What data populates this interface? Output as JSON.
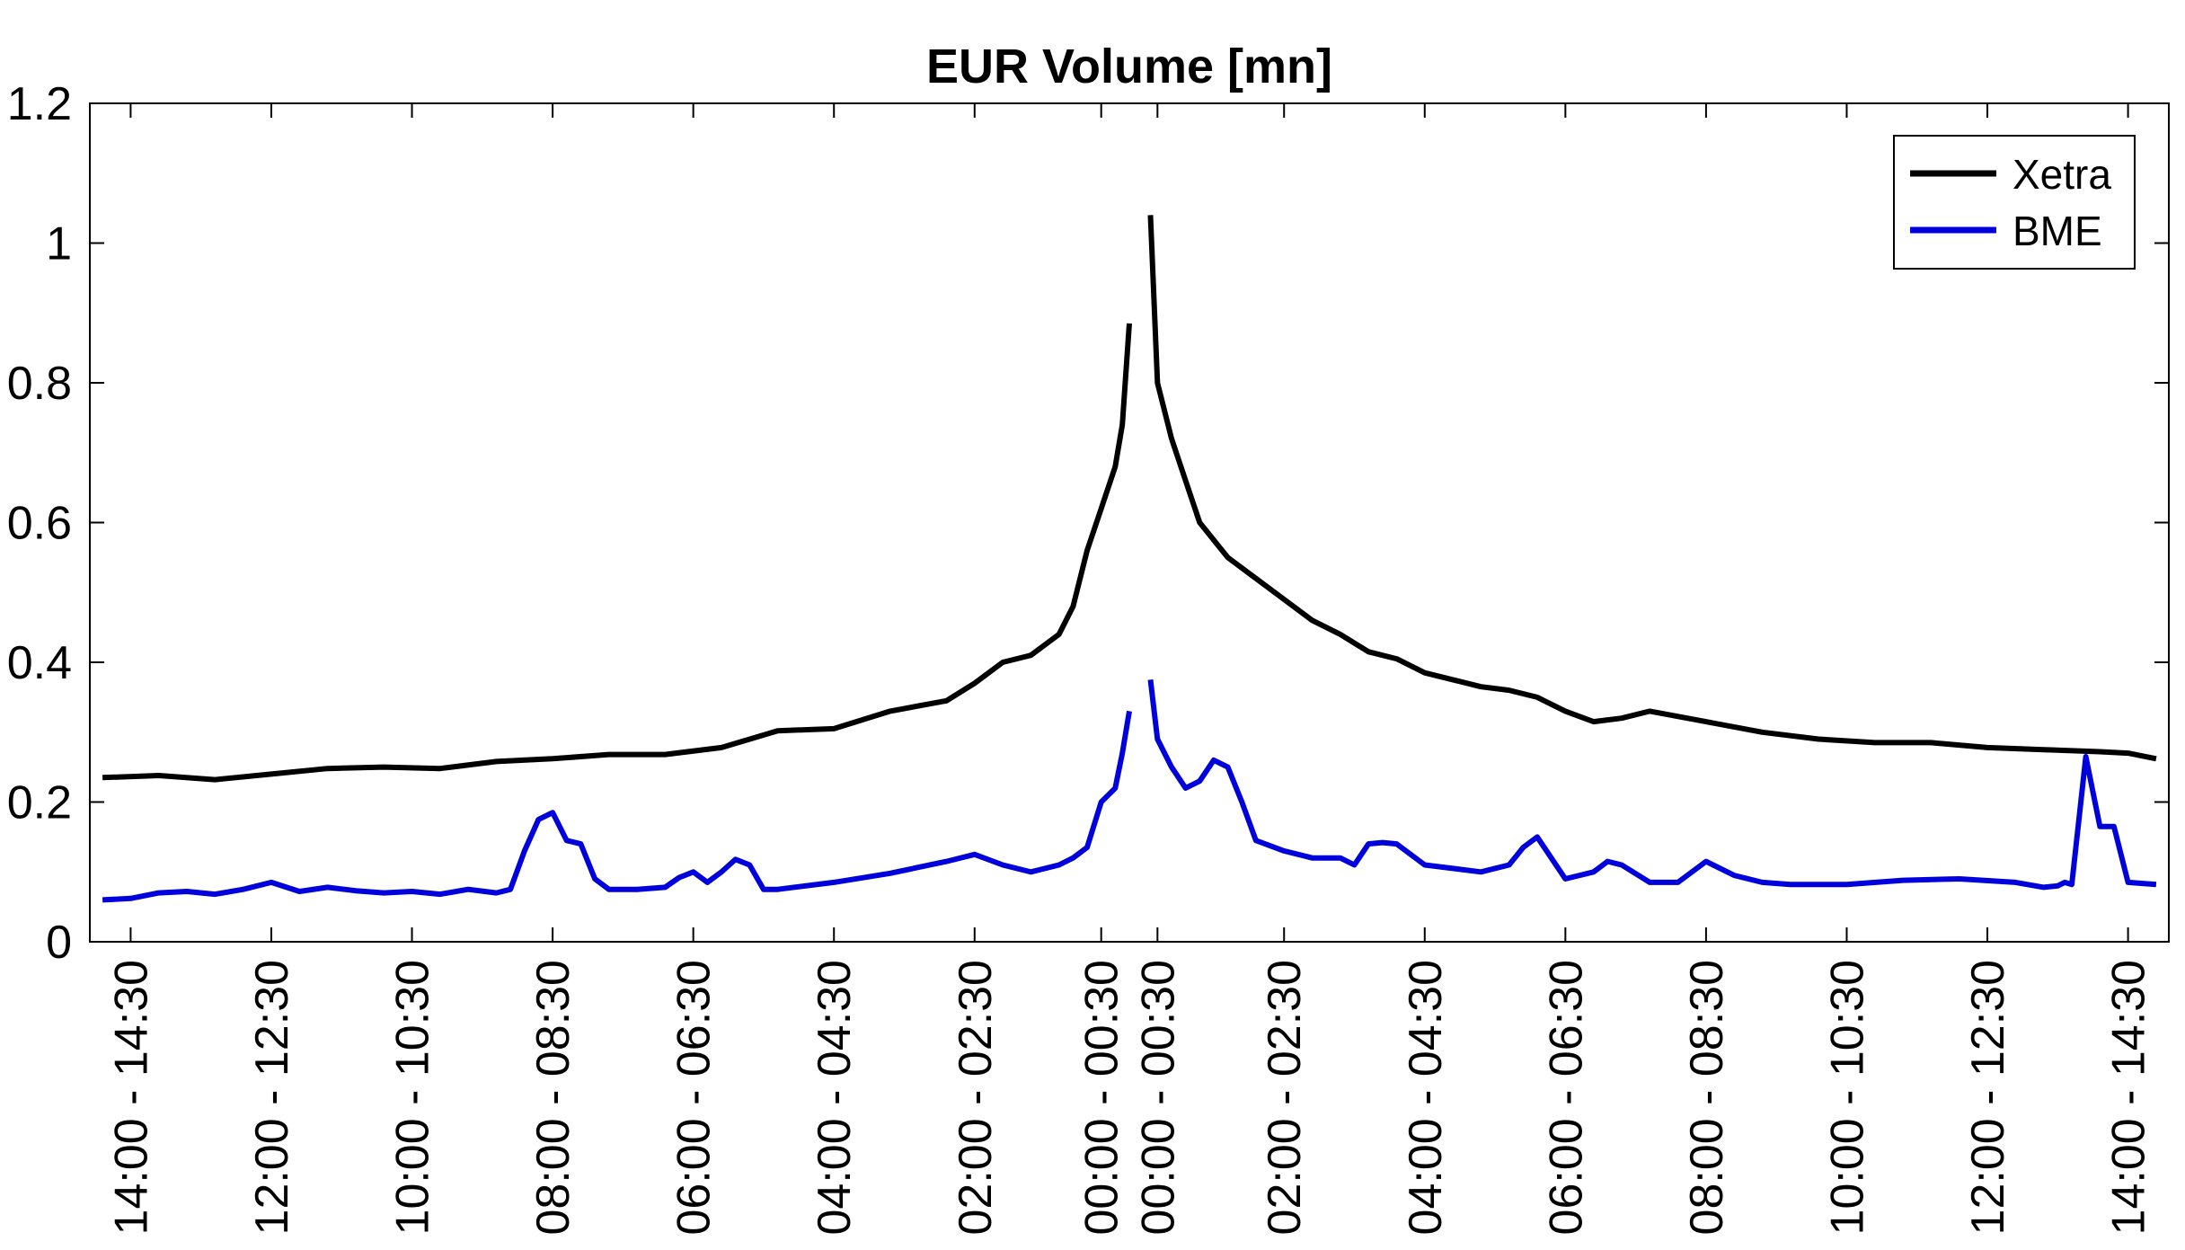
{
  "chart_data": {
    "type": "line",
    "title": "EUR Volume [mn]",
    "xlabel": "",
    "ylabel": "",
    "ylim": [
      0,
      1.2
    ],
    "yticks": [
      0,
      0.2,
      0.4,
      0.6,
      0.8,
      1,
      1.2
    ],
    "ytick_labels": [
      "0",
      "0.2",
      "0.4",
      "0.6",
      "0.8",
      "1",
      "1.2"
    ],
    "grid": false,
    "legend_position": "top-right",
    "xticks": [
      {
        "index": 2,
        "label": "14:00 - 14:30"
      },
      {
        "index": 12,
        "label": "12:00 - 12:30"
      },
      {
        "index": 22,
        "label": "10:00 - 10:30"
      },
      {
        "index": 32,
        "label": "08:00 - 08:30"
      },
      {
        "index": 42,
        "label": "06:00 - 06:30"
      },
      {
        "index": 52,
        "label": "04:00 - 04:30"
      },
      {
        "index": 62,
        "label": "02:00 - 02:30"
      },
      {
        "index": 71,
        "label": "00:00 - 00:30"
      },
      {
        "index": 75,
        "label": "00:00 - 00:30"
      },
      {
        "index": 84,
        "label": "02:00 - 02:30"
      },
      {
        "index": 94,
        "label": "04:00 - 04:30"
      },
      {
        "index": 104,
        "label": "06:00 - 06:30"
      },
      {
        "index": 114,
        "label": "08:00 - 08:30"
      },
      {
        "index": 124,
        "label": "10:00 - 10:30"
      },
      {
        "index": 134,
        "label": "12:00 - 12:30"
      },
      {
        "index": 144,
        "label": "14:00 - 14:30"
      }
    ],
    "x_range": [
      -0.9,
      146.9
    ],
    "series": [
      {
        "name": "Xetra",
        "color": "#000000",
        "segments": [
          {
            "x": [
              0,
              4,
              8,
              12,
              16,
              20,
              24,
              28,
              32,
              36,
              40,
              44,
              48,
              52,
              56,
              60,
              62,
              64,
              66,
              68,
              69,
              70,
              71,
              72,
              72.5,
              73
            ],
            "y": [
              0.235,
              0.238,
              0.232,
              0.24,
              0.248,
              0.25,
              0.248,
              0.258,
              0.262,
              0.268,
              0.268,
              0.278,
              0.302,
              0.305,
              0.33,
              0.345,
              0.37,
              0.4,
              0.41,
              0.44,
              0.48,
              0.56,
              0.62,
              0.68,
              0.74,
              0.885
            ]
          },
          {
            "x": [
              74.5,
              75,
              76,
              77,
              78,
              80,
              82,
              84,
              86,
              88,
              90,
              92,
              94,
              96,
              98,
              100,
              102,
              104,
              106,
              108,
              110,
              114,
              118,
              122,
              126,
              130,
              134,
              138,
              142,
              144,
              146
            ],
            "y": [
              1.04,
              0.8,
              0.72,
              0.66,
              0.6,
              0.55,
              0.52,
              0.49,
              0.46,
              0.44,
              0.415,
              0.405,
              0.385,
              0.375,
              0.365,
              0.36,
              0.35,
              0.33,
              0.315,
              0.32,
              0.33,
              0.315,
              0.3,
              0.29,
              0.285,
              0.285,
              0.278,
              0.275,
              0.272,
              0.27,
              0.262
            ]
          }
        ]
      },
      {
        "name": "BME",
        "color": "#0000dd",
        "segments": [
          {
            "x": [
              0,
              2,
              4,
              6,
              8,
              10,
              12,
              14,
              16,
              18,
              20,
              22,
              24,
              26,
              28,
              29,
              30,
              31,
              32,
              33,
              34,
              35,
              36,
              38,
              40,
              41,
              42,
              43,
              44,
              45,
              46,
              47,
              48,
              52,
              56,
              60,
              62,
              64,
              66,
              68,
              69,
              70,
              71,
              72,
              72.5,
              73
            ],
            "y": [
              0.06,
              0.062,
              0.07,
              0.072,
              0.068,
              0.075,
              0.085,
              0.072,
              0.078,
              0.073,
              0.07,
              0.072,
              0.068,
              0.075,
              0.07,
              0.075,
              0.13,
              0.175,
              0.185,
              0.145,
              0.14,
              0.09,
              0.075,
              0.075,
              0.078,
              0.092,
              0.1,
              0.085,
              0.1,
              0.118,
              0.11,
              0.075,
              0.075,
              0.085,
              0.098,
              0.115,
              0.125,
              0.11,
              0.1,
              0.11,
              0.12,
              0.135,
              0.2,
              0.22,
              0.27,
              0.33
            ]
          },
          {
            "x": [
              74.5,
              75,
              76,
              77,
              78,
              79,
              80,
              81,
              82,
              84,
              86,
              88,
              89,
              90,
              91,
              92,
              94,
              96,
              98,
              100,
              101,
              102,
              104,
              106,
              107,
              108,
              110,
              112,
              114,
              116,
              118,
              120,
              124,
              128,
              132,
              136,
              138,
              139,
              139.5,
              140,
              141,
              142,
              143,
              144,
              146
            ],
            "y": [
              0.375,
              0.29,
              0.25,
              0.22,
              0.23,
              0.26,
              0.25,
              0.2,
              0.145,
              0.13,
              0.12,
              0.12,
              0.11,
              0.14,
              0.142,
              0.14,
              0.11,
              0.105,
              0.1,
              0.11,
              0.135,
              0.15,
              0.09,
              0.1,
              0.115,
              0.11,
              0.085,
              0.085,
              0.115,
              0.095,
              0.085,
              0.082,
              0.082,
              0.088,
              0.09,
              0.085,
              0.078,
              0.08,
              0.085,
              0.082,
              0.265,
              0.165,
              0.165,
              0.085,
              0.082
            ]
          }
        ]
      }
    ]
  }
}
